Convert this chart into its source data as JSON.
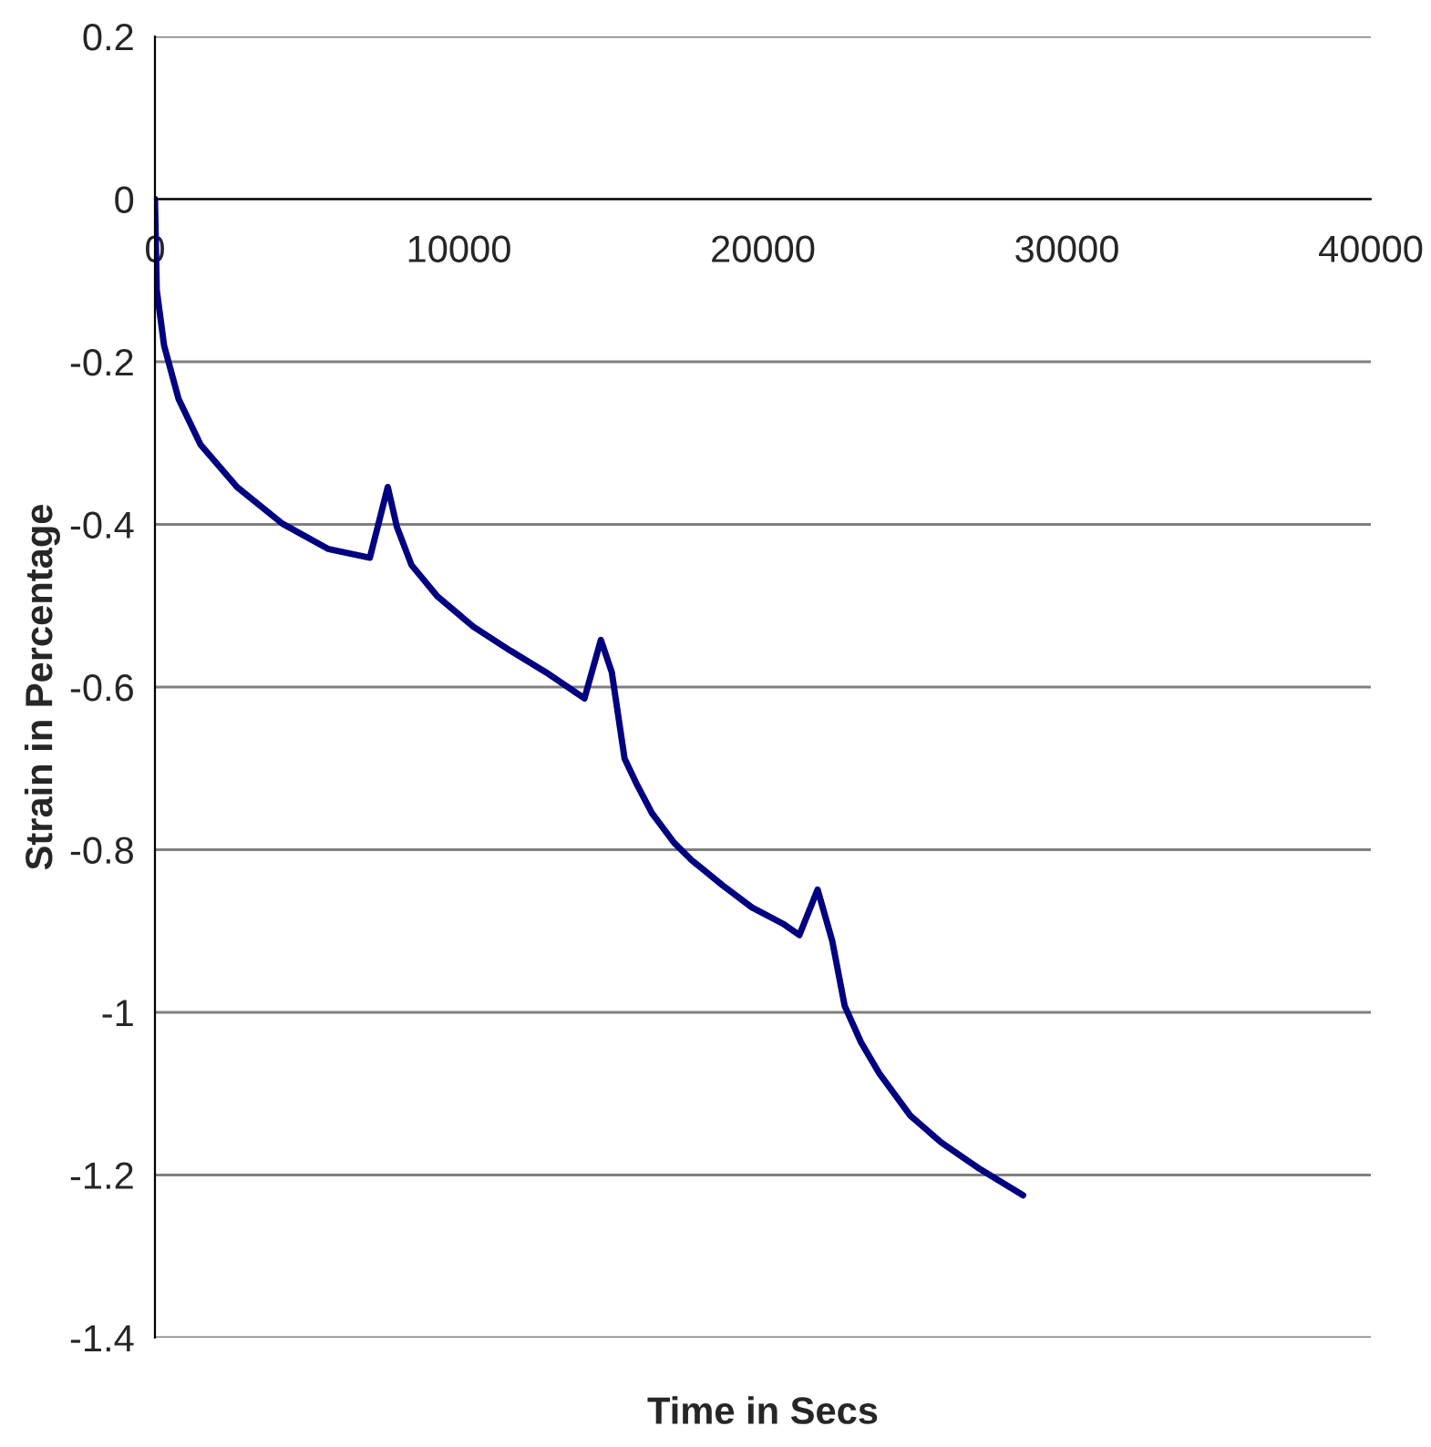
{
  "chart_data": {
    "type": "line",
    "xlabel": "Time in Secs",
    "ylabel": "Strain in Percentage",
    "xlim": [
      0,
      40000
    ],
    "xticks": [
      0,
      10000,
      20000,
      30000,
      40000
    ],
    "ylim": [
      -1.4,
      0.2
    ],
    "yticks": [
      -1.4,
      -1.2,
      -1,
      -0.8,
      -0.6,
      -0.4,
      -0.2,
      0,
      0.2
    ],
    "grid": "y",
    "line_style": "solid",
    "series": [
      {
        "color": "#000080",
        "x": [
          0,
          60,
          300,
          780,
          1500,
          2700,
          4190,
          5690,
          7070,
          7660,
          7960,
          8440,
          9280,
          10480,
          11680,
          12870,
          14130,
          14670,
          15030,
          15450,
          15870,
          16350,
          17070,
          17660,
          18680,
          19640,
          20660,
          21200,
          21800,
          22280,
          22690,
          23230,
          23830,
          24850,
          25870,
          27070,
          28560
        ],
        "values": [
          0,
          -0.112,
          -0.18,
          -0.246,
          -0.302,
          -0.354,
          -0.399,
          -0.43,
          -0.441,
          -0.354,
          -0.403,
          -0.45,
          -0.488,
          -0.526,
          -0.555,
          -0.582,
          -0.614,
          -0.542,
          -0.582,
          -0.688,
          -0.721,
          -0.755,
          -0.791,
          -0.813,
          -0.844,
          -0.871,
          -0.891,
          -0.905,
          -0.849,
          -0.912,
          -0.992,
          -1.037,
          -1.075,
          -1.127,
          -1.16,
          -1.191,
          -1.225
        ]
      }
    ]
  }
}
